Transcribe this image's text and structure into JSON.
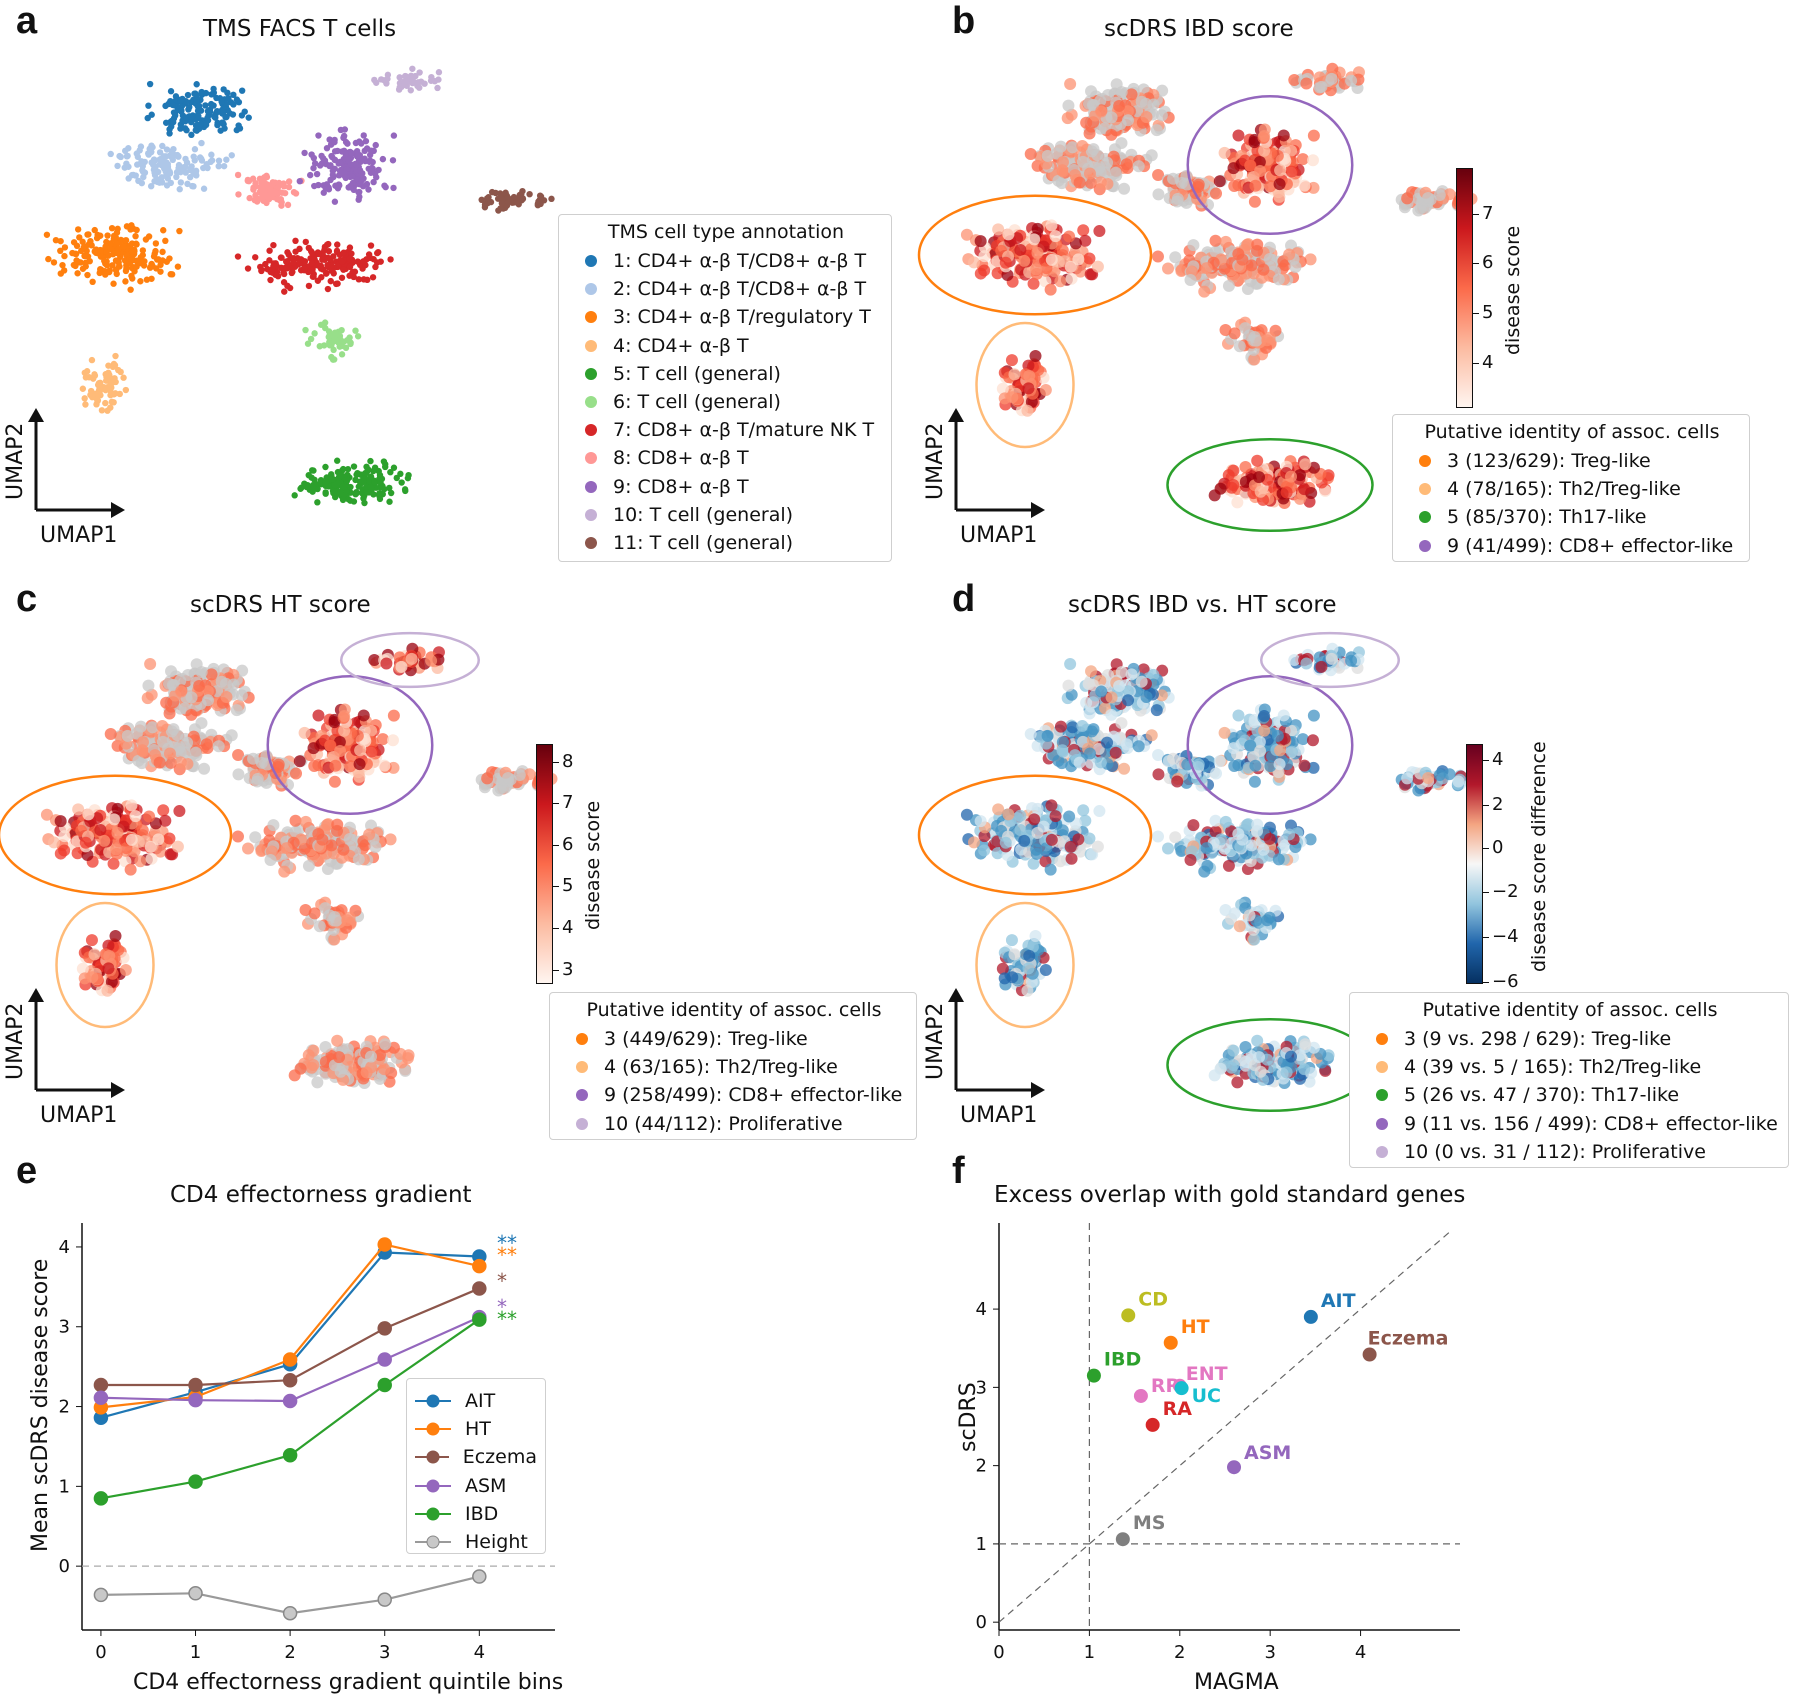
{
  "panels": {
    "a": {
      "letter": "a",
      "title": "TMS FACS T cells",
      "umap_x": "UMAP1",
      "umap_y": "UMAP2",
      "legend_title": "TMS cell type annotation",
      "legend": [
        {
          "label": "1: CD4+ α-β T/CD8+ α-β T",
          "color": "#1f77b4"
        },
        {
          "label": "2: CD4+ α-β T/CD8+ α-β T",
          "color": "#aec7e8"
        },
        {
          "label": "3: CD4+ α-β T/regulatory T",
          "color": "#ff7f0e"
        },
        {
          "label": "4: CD4+ α-β T",
          "color": "#ffbb78"
        },
        {
          "label": "5: T cell (general)",
          "color": "#2ca02c"
        },
        {
          "label": "6: T cell (general)",
          "color": "#98df8a"
        },
        {
          "label": "7: CD8+ α-β T/mature NK T",
          "color": "#d62728"
        },
        {
          "label": "8: CD8+ α-β T",
          "color": "#ff9896"
        },
        {
          "label": "9: CD8+ α-β T",
          "color": "#9467bd"
        },
        {
          "label": "10: T cell (general)",
          "color": "#c5b0d5"
        },
        {
          "label": "11: T cell (general)",
          "color": "#8c564b"
        }
      ]
    },
    "b": {
      "letter": "b",
      "title": "scDRS IBD score",
      "umap_x": "UMAP1",
      "umap_y": "UMAP2",
      "cbar_label": "disease score",
      "cbar_ticks": [
        "7",
        "6",
        "5",
        "4"
      ],
      "legend_title": "Putative identity of assoc. cells",
      "legend": [
        {
          "label": "3 (123/629): Treg-like",
          "color": "#ff7f0e"
        },
        {
          "label": "4 (78/165): Th2/Treg-like",
          "color": "#ffbb78"
        },
        {
          "label": "5 (85/370): Th17-like",
          "color": "#2ca02c"
        },
        {
          "label": "9 (41/499): CD8+ effector-like",
          "color": "#9467bd"
        }
      ]
    },
    "c": {
      "letter": "c",
      "title": "scDRS HT score",
      "umap_x": "UMAP1",
      "umap_y": "UMAP2",
      "cbar_label": "disease score",
      "cbar_ticks": [
        "8",
        "7",
        "6",
        "5",
        "4",
        "3"
      ],
      "legend_title": "Putative identity of assoc. cells",
      "legend": [
        {
          "label": "3 (449/629): Treg-like",
          "color": "#ff7f0e"
        },
        {
          "label": "4 (63/165): Th2/Treg-like",
          "color": "#ffbb78"
        },
        {
          "label": "9 (258/499): CD8+ effector-like",
          "color": "#9467bd"
        },
        {
          "label": "10 (44/112): Proliferative",
          "color": "#c5b0d5"
        }
      ]
    },
    "d": {
      "letter": "d",
      "title": "scDRS IBD vs. HT score",
      "umap_x": "UMAP1",
      "umap_y": "UMAP2",
      "cbar_label": "disease score difference",
      "cbar_ticks": [
        "4",
        "2",
        "0",
        "−2",
        "−4",
        "−6"
      ],
      "legend_title": "Putative identity of assoc. cells",
      "legend": [
        {
          "label": "3 (9 vs. 298 / 629): Treg-like",
          "color": "#ff7f0e"
        },
        {
          "label": "4 (39 vs. 5 / 165): Th2/Treg-like",
          "color": "#ffbb78"
        },
        {
          "label": "5 (26 vs. 47 / 370): Th17-like",
          "color": "#2ca02c"
        },
        {
          "label": "9 (11 vs. 156 / 499): CD8+ effector-like",
          "color": "#9467bd"
        },
        {
          "label": "10 (0 vs. 31 / 112): Proliferative",
          "color": "#c5b0d5"
        }
      ]
    },
    "e": {
      "letter": "e"
    },
    "f": {
      "letter": "f"
    }
  },
  "chart_data": [
    {
      "type": "line",
      "title": "CD4 effectorness gradient",
      "xlabel": "CD4 effectorness gradient quintile bins",
      "ylabel": "Mean scDRS disease score",
      "x": [
        0,
        1,
        2,
        3,
        4
      ],
      "xlim": [
        -0.2,
        4.8
      ],
      "ylim": [
        -0.8,
        4.3
      ],
      "xticks": [
        "0",
        "1",
        "2",
        "3",
        "4"
      ],
      "yticks": [
        "0",
        "1",
        "2",
        "3",
        "4"
      ],
      "series": [
        {
          "name": "AIT",
          "color": "#1f77b4",
          "values": [
            1.86,
            2.18,
            2.53,
            3.93,
            3.88
          ],
          "sig": "**"
        },
        {
          "name": "HT",
          "color": "#ff7f0e",
          "values": [
            1.99,
            2.12,
            2.59,
            4.03,
            3.76
          ],
          "sig": "**"
        },
        {
          "name": "Eczema",
          "color": "#8c564b",
          "values": [
            2.27,
            2.27,
            2.33,
            2.98,
            3.48
          ],
          "sig": "*"
        },
        {
          "name": "ASM",
          "color": "#9467bd",
          "values": [
            2.11,
            2.08,
            2.07,
            2.59,
            3.12
          ],
          "sig": "*"
        },
        {
          "name": "IBD",
          "color": "#2ca02c",
          "values": [
            0.85,
            1.06,
            1.39,
            2.27,
            3.09
          ],
          "sig": "**"
        },
        {
          "name": "Height",
          "color": "#9a9a9a",
          "values": [
            -0.36,
            -0.34,
            -0.59,
            -0.42,
            -0.13
          ],
          "sig": ""
        }
      ]
    },
    {
      "type": "scatter",
      "title": "Excess overlap with gold standard genes",
      "xlabel": "MAGMA",
      "ylabel": "scDRS",
      "xlim": [
        0,
        5.1
      ],
      "ylim": [
        -0.1,
        5.1
      ],
      "xticks": [
        "0",
        "1",
        "2",
        "3",
        "4"
      ],
      "yticks": [
        "0",
        "1",
        "2",
        "3",
        "4"
      ],
      "points": [
        {
          "label": "CD",
          "x": 1.43,
          "y": 3.92,
          "color": "#bcbd22"
        },
        {
          "label": "HT",
          "x": 1.9,
          "y": 3.57,
          "color": "#ff7f0e"
        },
        {
          "label": "AIT",
          "x": 3.45,
          "y": 3.9,
          "color": "#1f77b4"
        },
        {
          "label": "Eczema",
          "x": 4.1,
          "y": 3.42,
          "color": "#8c564b"
        },
        {
          "label": "IBD",
          "x": 1.05,
          "y": 3.15,
          "color": "#2ca02c"
        },
        {
          "label": "RR",
          "x": 1.57,
          "y": 2.89,
          "color": "#e377c2"
        },
        {
          "label": "ENT",
          "x": 2.0,
          "y": 3.02,
          "color": "#e377c2"
        },
        {
          "label": "UC",
          "x": 2.02,
          "y": 2.99,
          "color": "#17becf"
        },
        {
          "label": "RA",
          "x": 1.7,
          "y": 2.52,
          "color": "#d62728"
        },
        {
          "label": "ASM",
          "x": 2.6,
          "y": 1.98,
          "color": "#9467bd"
        },
        {
          "label": "MS",
          "x": 1.37,
          "y": 1.06,
          "color": "#7f7f7f"
        }
      ]
    }
  ]
}
